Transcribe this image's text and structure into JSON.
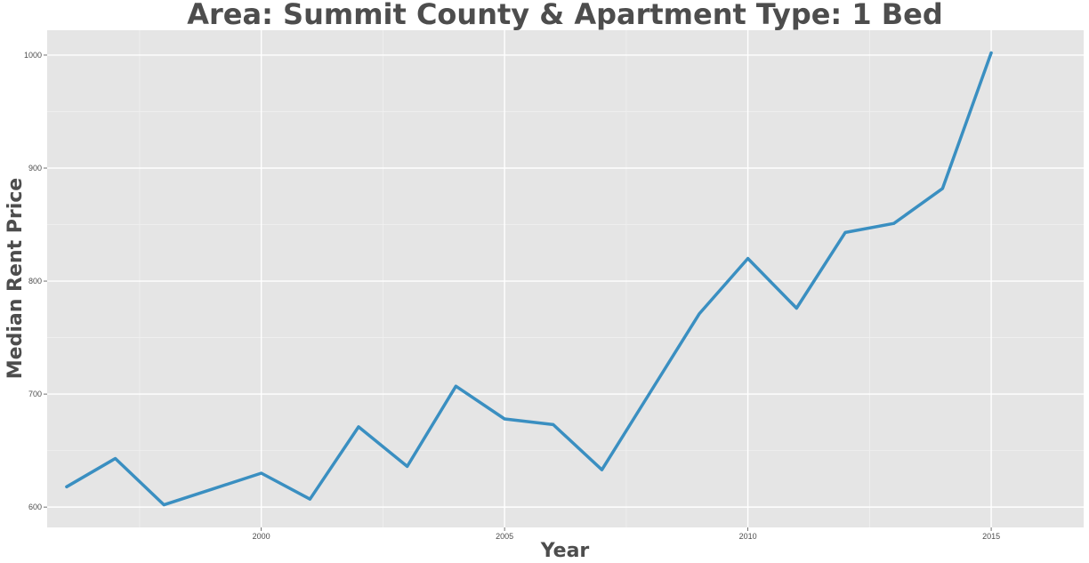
{
  "chart_data": {
    "type": "line",
    "title": "Area: Summit County & Apartment Type: 1 Bed",
    "xlabel": "Year",
    "ylabel": "Median Rent Price",
    "xlim": [
      1995.6,
      2016.9
    ],
    "ylim": [
      582,
      1022
    ],
    "x_ticks": [
      2000,
      2005,
      2010,
      2015
    ],
    "y_ticks": [
      600,
      700,
      800,
      900,
      1000
    ],
    "grid": true,
    "colors": {
      "line": "#3a8fc1",
      "panel": "#e5e5e5",
      "grid_major": "#ffffff",
      "grid_minor": "#f0f0f0"
    },
    "series": [
      {
        "x": [
          1996,
          1997,
          1998,
          1999,
          2000,
          2001,
          2002,
          2003,
          2004,
          2005,
          2006,
          2007,
          2008,
          2009,
          2010,
          2011,
          2012,
          2013,
          2014,
          2015
        ],
        "values": [
          618,
          643,
          602,
          616,
          630,
          607,
          671,
          636,
          707,
          678,
          673,
          633,
          702,
          771,
          820,
          776,
          843,
          851,
          882,
          1002
        ]
      }
    ]
  }
}
